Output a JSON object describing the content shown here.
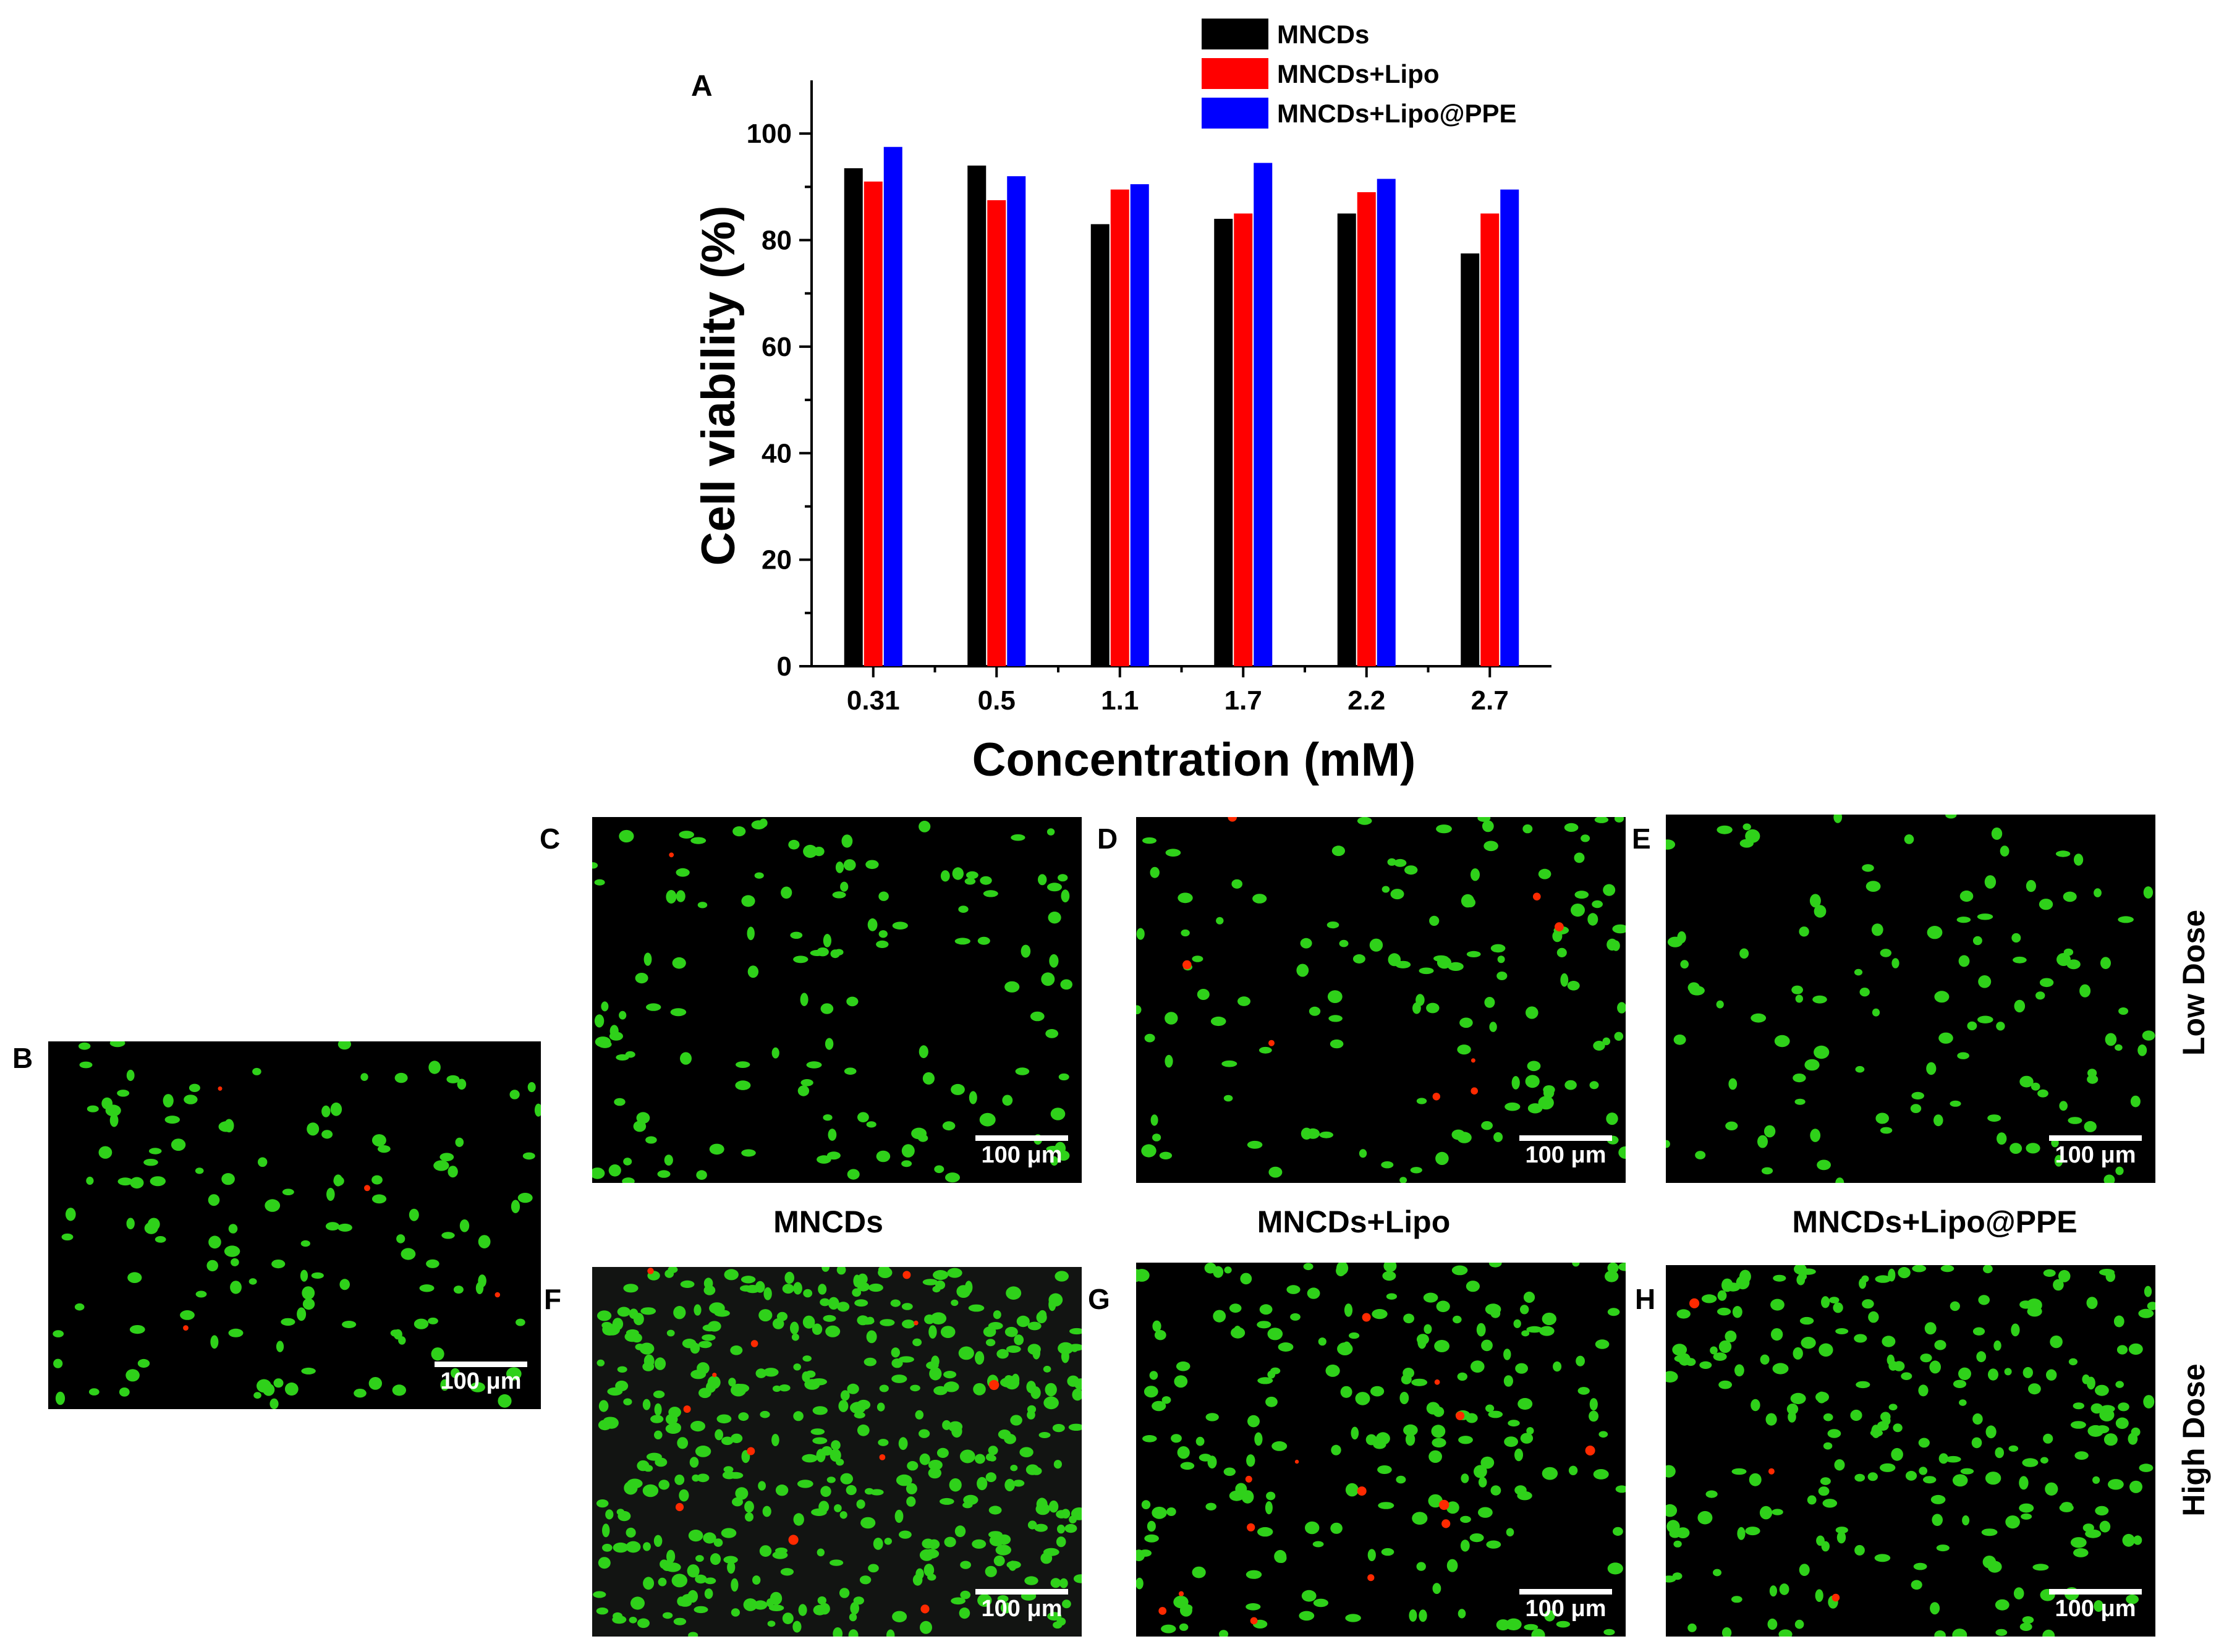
{
  "colors": {
    "MNCDs": "#000000",
    "MNCDs+Lipo": "#ff0000",
    "MNCDs+Lipo@PPE": "#0000ff",
    "live_cell": "#2fd11a",
    "dead_cell": "#ff2a00",
    "micro_background": "#000000"
  },
  "chart_data": {
    "type": "bar",
    "panel_label": "A",
    "categories": [
      "0.31",
      "0.5",
      "1.1",
      "1.7",
      "2.2",
      "2.7"
    ],
    "series": [
      {
        "name": "MNCDs",
        "values": [
          93.5,
          94,
          83,
          84,
          85,
          77.5
        ]
      },
      {
        "name": "MNCDs+Lipo",
        "values": [
          91,
          87.5,
          89.5,
          85,
          89,
          85
        ]
      },
      {
        "name": "MNCDs+Lipo@PPE",
        "values": [
          97.5,
          92,
          90.5,
          94.5,
          91.5,
          89.5
        ]
      }
    ],
    "xlabel": "Concentration (mM)",
    "ylabel": "Cell viability (%)",
    "ylim": [
      0,
      110
    ],
    "yticks": [
      "0",
      "20",
      "40",
      "60",
      "80",
      "100"
    ],
    "legend_position": "top",
    "grid": false
  },
  "micrographs": {
    "scale_label": "100 μm",
    "panels": [
      {
        "letter": "B",
        "live": 130,
        "dead": 4
      },
      {
        "letter": "C",
        "live": 130,
        "dead": 1
      },
      {
        "letter": "D",
        "live": 120,
        "dead": 8
      },
      {
        "letter": "E",
        "live": 110,
        "dead": 0
      },
      {
        "letter": "F",
        "live": 420,
        "dead": 12
      },
      {
        "letter": "G",
        "live": 200,
        "dead": 14
      },
      {
        "letter": "H",
        "live": 230,
        "dead": 3
      }
    ],
    "column_labels": [
      "MNCDs",
      "MNCDs+Lipo",
      "MNCDs+Lipo@PPE"
    ],
    "row_labels": [
      "Low Dose",
      "High Dose"
    ]
  }
}
